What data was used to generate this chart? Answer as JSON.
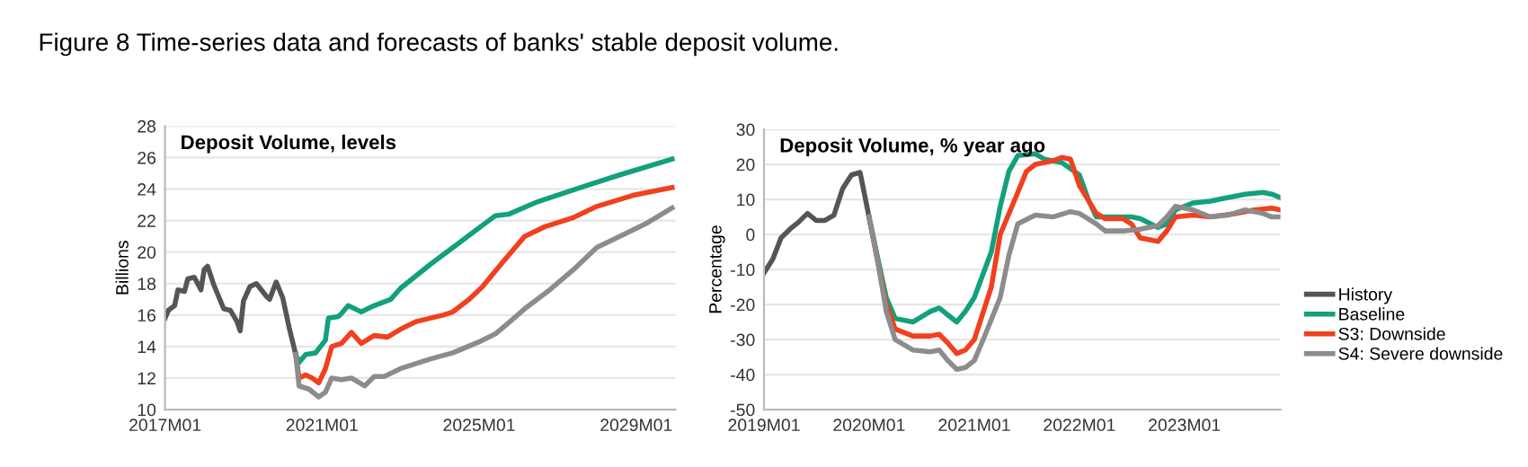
{
  "chart_data": [
    {
      "type": "line",
      "title": "Deposit Volume, levels",
      "ylabel": "Billions",
      "annotations": [
        "Figure 8 Time-series data and forecasts of banks' stable deposit volume."
      ],
      "xlim": [
        "2017-01",
        "2030-01"
      ],
      "xticks": [
        {
          "value": "2017-01",
          "label": "2017M01"
        },
        {
          "value": "2021-01",
          "label": "2021M01"
        },
        {
          "value": "2025-01",
          "label": "2025M01"
        },
        {
          "value": "2029-01",
          "label": "2029M01"
        }
      ],
      "ylim": [
        10,
        28
      ],
      "yticks": [
        10,
        12,
        14,
        16,
        18,
        20,
        22,
        24,
        26,
        28
      ],
      "grid": "y",
      "legend": false,
      "series": [
        {
          "color": "#555555",
          "x": [
            "2017-01",
            "2017-02",
            "2017-04",
            "2017-05",
            "2017-07",
            "2017-08",
            "2017-10",
            "2017-12",
            "2018-01",
            "2018-02",
            "2018-04",
            "2018-07",
            "2018-09",
            "2018-11",
            "2018-12",
            "2019-01",
            "2019-03",
            "2019-05",
            "2019-08",
            "2019-09",
            "2019-11",
            "2020-01",
            "2020-03",
            "2020-05"
          ],
          "values": [
            15.8,
            16.3,
            16.6,
            17.6,
            17.5,
            18.3,
            18.4,
            17.6,
            18.9,
            19.1,
            17.9,
            16.4,
            16.3,
            15.6,
            15.0,
            16.9,
            17.8,
            18.0,
            17.2,
            17.0,
            18.1,
            17.1,
            15.2,
            13.5
          ]
        },
        {
          "color": "#13a07c",
          "x": [
            "2020-05",
            "2020-06",
            "2020-08",
            "2020-11",
            "2021-02",
            "2021-03",
            "2021-06",
            "2021-07",
            "2021-09",
            "2022-01",
            "2022-05",
            "2022-10",
            "2023-01",
            "2023-10",
            "2024-07",
            "2025-02",
            "2025-06",
            "2025-10",
            "2026-07",
            "2027-08",
            "2028-08",
            "2029-12"
          ],
          "values": [
            13.5,
            13.0,
            13.5,
            13.6,
            14.4,
            15.8,
            15.9,
            16.1,
            16.6,
            16.2,
            16.6,
            17.0,
            17.7,
            19.2,
            20.6,
            21.7,
            22.3,
            22.4,
            23.2,
            24.1,
            24.9,
            25.9
          ]
        },
        {
          "color": "#f0401e",
          "x": [
            "2020-05",
            "2020-06",
            "2020-08",
            "2020-10",
            "2020-12",
            "2021-02",
            "2021-04",
            "2021-07",
            "2021-10",
            "2022-01",
            "2022-05",
            "2022-09",
            "2023-01",
            "2023-06",
            "2024-02",
            "2024-05",
            "2024-10",
            "2025-02",
            "2025-08",
            "2026-03",
            "2026-09",
            "2027-06",
            "2028-01",
            "2028-12",
            "2029-12"
          ],
          "values": [
            13.5,
            12.0,
            12.2,
            12.0,
            11.7,
            12.6,
            14.0,
            14.2,
            14.9,
            14.2,
            14.7,
            14.6,
            15.1,
            15.6,
            16.0,
            16.2,
            17.0,
            17.8,
            19.3,
            21.0,
            21.6,
            22.2,
            22.9,
            23.6,
            24.1
          ]
        },
        {
          "color": "#8c8c8c",
          "x": [
            "2020-05",
            "2020-06",
            "2020-09",
            "2020-12",
            "2021-02",
            "2021-04",
            "2021-07",
            "2021-10",
            "2022-02",
            "2022-05",
            "2022-08",
            "2023-01",
            "2023-10",
            "2024-05",
            "2025-01",
            "2025-06",
            "2025-10",
            "2026-03",
            "2026-10",
            "2027-06",
            "2028-01",
            "2028-08",
            "2029-04",
            "2029-12"
          ],
          "values": [
            13.5,
            11.5,
            11.3,
            10.8,
            11.1,
            12.0,
            11.9,
            12.0,
            11.5,
            12.1,
            12.1,
            12.6,
            13.2,
            13.6,
            14.3,
            14.8,
            15.5,
            16.4,
            17.5,
            18.9,
            20.3,
            21.0,
            21.8,
            22.8
          ]
        }
      ]
    },
    {
      "type": "line",
      "title": "Deposit Volume, % year ago",
      "ylabel": "Percentage",
      "xlim": [
        "2019-01",
        "2023-12"
      ],
      "xticks": [
        {
          "value": "2019-01",
          "label": "2019M01"
        },
        {
          "value": "2020-01",
          "label": "2020M01"
        },
        {
          "value": "2021-01",
          "label": "2021M01"
        },
        {
          "value": "2022-01",
          "label": "2022M01"
        },
        {
          "value": "2023-01",
          "label": "2023M01"
        }
      ],
      "ylim": [
        -50,
        30
      ],
      "yticks": [
        -50,
        -40,
        -30,
        -20,
        -10,
        0,
        10,
        20,
        30
      ],
      "grid": "y",
      "legend": "right",
      "series": [
        {
          "name": "History",
          "color": "#555555",
          "x": [
            "2019-01",
            "2019-02",
            "2019-03",
            "2019-04",
            "2019-05",
            "2019-06",
            "2019-07",
            "2019-08",
            "2019-09",
            "2019-10",
            "2019-11",
            "2019-12",
            "2020-01"
          ],
          "values": [
            -11,
            -7,
            -1,
            1.5,
            3.5,
            6,
            4,
            4,
            5.5,
            13,
            17,
            17.7,
            5
          ]
        },
        {
          "name": "Baseline",
          "color": "#13a07c",
          "x": [
            "2020-01",
            "2020-02",
            "2020-03",
            "2020-04",
            "2020-06",
            "2020-08",
            "2020-09",
            "2020-10",
            "2020-11",
            "2020-12",
            "2021-01",
            "2021-03",
            "2021-04",
            "2021-05",
            "2021-06",
            "2021-08",
            "2021-09",
            "2021-11",
            "2022-01",
            "2022-02",
            "2022-03",
            "2022-05",
            "2022-07",
            "2022-08",
            "2022-10",
            "2022-11",
            "2022-12",
            "2023-02",
            "2023-04",
            "2023-06",
            "2023-08",
            "2023-10",
            "2023-11",
            "2023-12"
          ],
          "values": [
            5,
            -7,
            -18,
            -24,
            -25,
            -22,
            -21,
            -23,
            -25,
            -22,
            -18,
            -5,
            8,
            18,
            22.5,
            23,
            21.5,
            20.5,
            17,
            10,
            5,
            5,
            5,
            4.5,
            2,
            3,
            7,
            9,
            9.5,
            10.5,
            11.5,
            12,
            11.5,
            10.5
          ]
        },
        {
          "name": "S3: Downside",
          "color": "#f0401e",
          "x": [
            "2020-01",
            "2020-02",
            "2020-03",
            "2020-04",
            "2020-06",
            "2020-08",
            "2020-09",
            "2020-10",
            "2020-11",
            "2020-12",
            "2021-01",
            "2021-03",
            "2021-04",
            "2021-06",
            "2021-07",
            "2021-08",
            "2021-10",
            "2021-11",
            "2021-12",
            "2022-01",
            "2022-03",
            "2022-04",
            "2022-06",
            "2022-07",
            "2022-08",
            "2022-10",
            "2022-11",
            "2022-12",
            "2023-02",
            "2023-04",
            "2023-07",
            "2023-09",
            "2023-11",
            "2023-12"
          ],
          "values": [
            5,
            -8,
            -20,
            -27,
            -29,
            -29,
            -28.5,
            -31,
            -34,
            -33,
            -30,
            -15,
            0,
            12,
            18,
            20,
            21,
            22,
            21.5,
            14,
            6,
            4.5,
            4.5,
            3,
            -1,
            -2,
            1,
            5,
            5.5,
            5,
            6,
            7,
            7.5,
            7
          ]
        },
        {
          "name": "S4: Severe downside",
          "color": "#8c8c8c",
          "x": [
            "2020-01",
            "2020-02",
            "2020-03",
            "2020-04",
            "2020-06",
            "2020-08",
            "2020-09",
            "2020-10",
            "2020-11",
            "2020-12",
            "2021-01",
            "2021-02",
            "2021-04",
            "2021-05",
            "2021-06",
            "2021-08",
            "2021-10",
            "2021-12",
            "2022-01",
            "2022-03",
            "2022-04",
            "2022-06",
            "2022-08",
            "2022-10",
            "2022-11",
            "2022-12",
            "2023-02",
            "2023-04",
            "2023-06",
            "2023-08",
            "2023-10",
            "2023-11",
            "2023-12"
          ],
          "values": [
            5,
            -8,
            -22,
            -30,
            -33,
            -33.5,
            -33,
            -36,
            -38.5,
            -38,
            -36,
            -30,
            -18,
            -6,
            3,
            5.5,
            5,
            6.5,
            6,
            3,
            1,
            1,
            1.5,
            2.5,
            5,
            8,
            7,
            5,
            5.5,
            7,
            6,
            5,
            5
          ]
        }
      ]
    }
  ]
}
